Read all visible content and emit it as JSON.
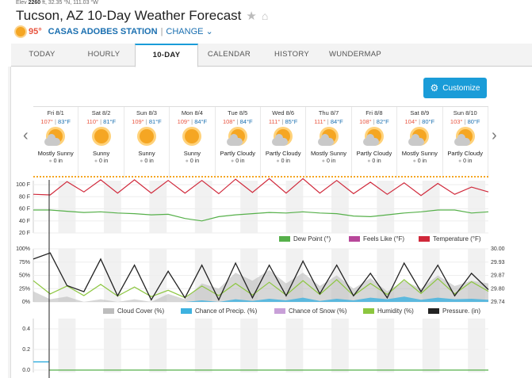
{
  "header": {
    "elev_label": "Elev",
    "elev_value": "2260",
    "coords_rest": "ft, 32.35 °N, 111.03 °W",
    "title": "Tucson, AZ 10-Day Weather Forecast",
    "current_temp": "95°",
    "station": "CASAS ADOBES STATION",
    "separator": "|",
    "change_label": "CHANGE"
  },
  "tabs": [
    {
      "label": "TODAY"
    },
    {
      "label": "HOURLY"
    },
    {
      "label": "10-DAY"
    },
    {
      "label": "CALENDAR"
    },
    {
      "label": "HISTORY"
    },
    {
      "label": "WUNDERMAP"
    }
  ],
  "customize_label": "Customize",
  "days": [
    {
      "name": "Fri 8/1",
      "hi": "107°",
      "lo": "83°F",
      "condition": "Mostly Sunny",
      "precip": "0 in",
      "icon": "partly-sunny-icon"
    },
    {
      "name": "Sat 8/2",
      "hi": "110°",
      "lo": "81°F",
      "condition": "Sunny",
      "precip": "0 in",
      "icon": "sun-icon"
    },
    {
      "name": "Sun 8/3",
      "hi": "109°",
      "lo": "81°F",
      "condition": "Sunny",
      "precip": "0 in",
      "icon": "sun-icon"
    },
    {
      "name": "Mon 8/4",
      "hi": "109°",
      "lo": "84°F",
      "condition": "Sunny",
      "precip": "0 in",
      "icon": "sun-icon"
    },
    {
      "name": "Tue 8/5",
      "hi": "108°",
      "lo": "84°F",
      "condition": "Partly Cloudy",
      "precip": "0 in",
      "icon": "partly-cloudy-icon"
    },
    {
      "name": "Wed 8/6",
      "hi": "111°",
      "lo": "85°F",
      "condition": "Partly Cloudy",
      "precip": "0 in",
      "icon": "partly-cloudy-icon"
    },
    {
      "name": "Thu 8/7",
      "hi": "111°",
      "lo": "84°F",
      "condition": "Mostly Sunny",
      "precip": "0 in",
      "icon": "partly-sunny-icon"
    },
    {
      "name": "Fri 8/8",
      "hi": "108°",
      "lo": "82°F",
      "condition": "Partly Cloudy",
      "precip": "0 in",
      "icon": "partly-cloudy-icon"
    },
    {
      "name": "Sat 8/9",
      "hi": "104°",
      "lo": "80°F",
      "condition": "Mostly Sunny",
      "precip": "0 in",
      "icon": "partly-sunny-icon"
    },
    {
      "name": "Sun 8/10",
      "hi": "103°",
      "lo": "80°F",
      "condition": "Partly Cloudy",
      "precip": "0 in",
      "icon": "partly-cloudy-icon"
    }
  ],
  "colors": {
    "temperature": "#d0283a",
    "dew_point": "#56b04a",
    "feels_like": "#b8479a",
    "cloud_cover": "#bdbdbd",
    "precip_chance": "#3db2e0",
    "snow_chance": "#c8a0d8",
    "humidity": "#8cc63f",
    "pressure": "#222222",
    "accent": "#1a9cd8"
  },
  "chart_data": [
    {
      "type": "line",
      "y_ticks": [
        "100 F",
        "80 F",
        "60 F",
        "40 F",
        "20 F"
      ],
      "ylim": [
        20,
        100
      ],
      "legend": [
        "Dew Point (°)",
        "Feels Like (°F)",
        "Temperature (°F)"
      ],
      "legend_placement": "bottom-right",
      "series": [
        {
          "name": "Temperature (°F)",
          "values": [
            84,
            83,
            105,
            88,
            108,
            86,
            108,
            86,
            107,
            86,
            107,
            85,
            109,
            87,
            110,
            86,
            110,
            86,
            107,
            85,
            104,
            84,
            103,
            82,
            102,
            84,
            96,
            88
          ]
        },
        {
          "name": "Dew Point (°)",
          "values": [
            58,
            58,
            56,
            54,
            55,
            53,
            52,
            50,
            51,
            44,
            40,
            47,
            50,
            52,
            54,
            53,
            55,
            53,
            52,
            48,
            47,
            50,
            53,
            55,
            58,
            58,
            53,
            55
          ]
        }
      ]
    },
    {
      "type": "area",
      "y_ticks_left": [
        "100%",
        "75%",
        "50%",
        "25%",
        "0%"
      ],
      "y_ticks_right": [
        "30.00",
        "29.93",
        "29.87",
        "29.80",
        "29.74"
      ],
      "ylim_left": [
        0,
        100
      ],
      "ylim_right": [
        29.74,
        30.0
      ],
      "legend": [
        "Cloud Cover (%)",
        "Chance of Precip. (%)",
        "Chance of Snow (%)",
        "Humidity (%)",
        "Pressure. (in)"
      ],
      "legend_placement": "bottom-right",
      "series": [
        {
          "name": "Pressure. (in)",
          "values": [
            29.95,
            29.98,
            29.82,
            29.79,
            29.95,
            29.77,
            29.92,
            29.75,
            29.89,
            29.76,
            29.92,
            29.75,
            29.93,
            29.76,
            29.92,
            29.77,
            29.94,
            29.78,
            29.92,
            29.77,
            29.88,
            29.76,
            29.93,
            29.79,
            29.92,
            29.77,
            29.88,
            29.8
          ]
        },
        {
          "name": "Humidity (%)",
          "values": [
            40,
            15,
            30,
            12,
            33,
            11,
            28,
            10,
            22,
            8,
            30,
            12,
            35,
            13,
            37,
            13,
            40,
            14,
            42,
            12,
            35,
            14,
            42,
            16,
            44,
            15,
            38,
            20
          ]
        },
        {
          "name": "Cloud Cover (%)",
          "values": [
            20,
            5,
            10,
            0,
            5,
            0,
            5,
            0,
            15,
            5,
            35,
            25,
            55,
            40,
            60,
            35,
            55,
            30,
            50,
            25,
            45,
            20,
            40,
            25,
            50,
            30,
            40,
            35
          ]
        },
        {
          "name": "Chance of Precip. (%)",
          "values": [
            0,
            0,
            0,
            0,
            0,
            0,
            0,
            0,
            0,
            0,
            3,
            0,
            5,
            2,
            6,
            3,
            8,
            2,
            6,
            3,
            8,
            5,
            10,
            4,
            8,
            5,
            6,
            4
          ]
        }
      ]
    },
    {
      "type": "line",
      "y_ticks": [
        "0.4",
        "0.2",
        "0.0"
      ],
      "ylim": [
        0,
        0.5
      ],
      "series": [
        {
          "name": "Precip",
          "values": [
            0.08,
            0,
            0,
            0,
            0,
            0,
            0,
            0,
            0,
            0
          ]
        }
      ]
    }
  ]
}
